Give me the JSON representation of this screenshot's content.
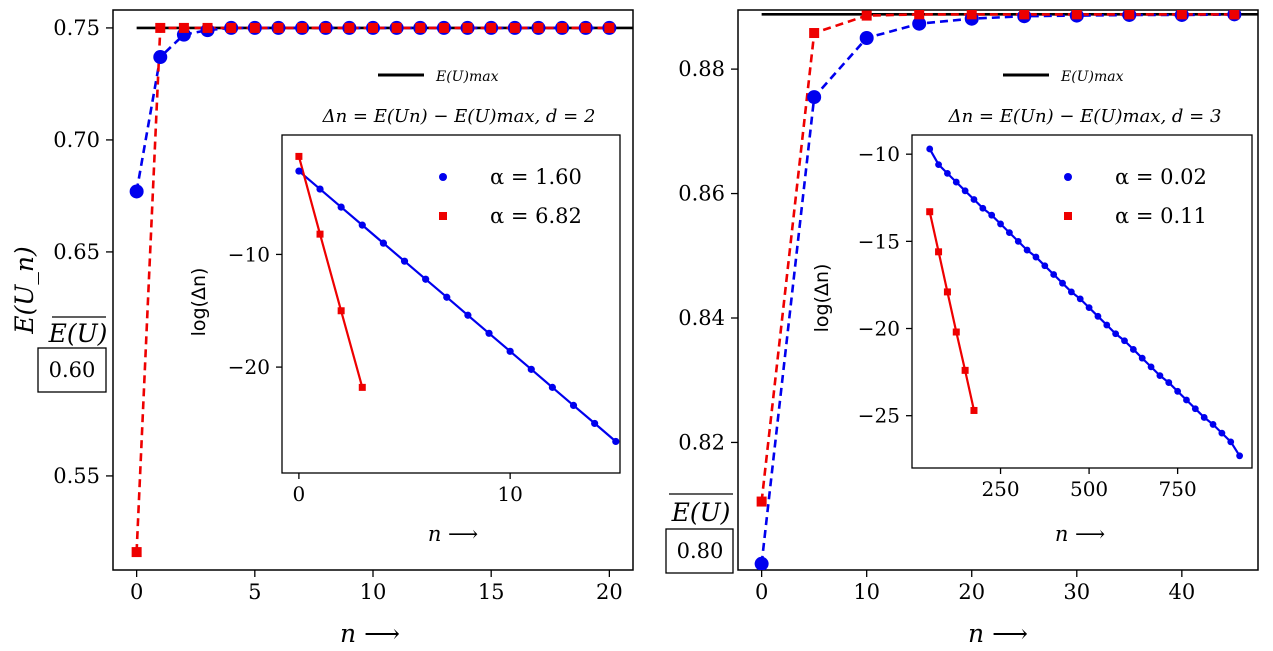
{
  "chart_data": [
    {
      "type": "line",
      "ylabel": "E(U_n)",
      "ylabel_box_overline": "E(U)",
      "ylabel_box_value": "0.60",
      "xlabel": "n ⟶",
      "xlim": [
        -1,
        21
      ],
      "ylim": [
        0.508,
        0.758
      ],
      "xticks": [
        0,
        5,
        10,
        15,
        20
      ],
      "xtick_labels": [
        "0",
        "5",
        "10",
        "15",
        "20"
      ],
      "yticks": [
        0.55,
        0.65,
        0.7,
        0.75
      ],
      "ytick_labels": [
        "0.55",
        "0.65",
        "0.70",
        "0.75"
      ],
      "max_line": {
        "value": 0.75,
        "label": "E(U)max"
      },
      "series": [
        {
          "name": "blue",
          "color": "#0000ee",
          "marker": "circle",
          "x": [
            0,
            1,
            2,
            3,
            4,
            5,
            6,
            7,
            8,
            9,
            10,
            11,
            12,
            13,
            14,
            15,
            16,
            17,
            18,
            19,
            20
          ],
          "values": [
            0.677,
            0.737,
            0.747,
            0.749,
            0.75,
            0.75,
            0.75,
            0.75,
            0.75,
            0.75,
            0.75,
            0.75,
            0.75,
            0.75,
            0.75,
            0.75,
            0.75,
            0.75,
            0.75,
            0.75,
            0.75
          ]
        },
        {
          "name": "red",
          "color": "#ee0000",
          "marker": "square",
          "x": [
            0,
            1,
            2,
            3,
            4,
            5,
            6,
            7,
            8,
            9,
            10,
            11,
            12,
            13,
            14,
            15,
            16,
            17,
            18,
            19,
            20
          ],
          "values": [
            0.516,
            0.75,
            0.75,
            0.75,
            0.75,
            0.75,
            0.75,
            0.75,
            0.75,
            0.75,
            0.75,
            0.75,
            0.75,
            0.75,
            0.75,
            0.75,
            0.75,
            0.75,
            0.75,
            0.75,
            0.75
          ]
        }
      ],
      "inset": {
        "title": "Δn = E(Un) − E(U)max, d = 2",
        "ylabel": "log(Δn)",
        "xlabel": "n ⟶",
        "xlim": [
          -0.8,
          15.2
        ],
        "ylim": [
          -29.4,
          0.6
        ],
        "xticks": [
          0,
          10
        ],
        "xtick_labels": [
          "0",
          "10"
        ],
        "yticks": [
          -10,
          -20
        ],
        "ytick_labels": [
          "−10",
          "−20"
        ],
        "legend": [
          "α = 1.60",
          "α = 6.82"
        ],
        "series": [
          {
            "name": "α = 1.60",
            "color": "#0000ee",
            "marker": "circle",
            "x": [
              0,
              1,
              2,
              3,
              4,
              5,
              6,
              7,
              8,
              9,
              10,
              11,
              12,
              13,
              14,
              15
            ],
            "values": [
              -2.6,
              -4.2,
              -5.8,
              -7.4,
              -9.0,
              -10.6,
              -12.2,
              -13.8,
              -15.4,
              -17.0,
              -18.6,
              -20.2,
              -21.8,
              -23.4,
              -25.0,
              -26.6
            ]
          },
          {
            "name": "α = 6.82",
            "color": "#ee0000",
            "marker": "square",
            "x": [
              0,
              1,
              2,
              3
            ],
            "values": [
              -1.3,
              -8.2,
              -15.0,
              -21.8
            ]
          }
        ]
      }
    },
    {
      "type": "line",
      "ylabel_box_overline": "E(U)",
      "ylabel_box_value": "0.80",
      "xlabel": "n ⟶",
      "xlim": [
        -2.25,
        47.25
      ],
      "ylim": [
        0.7995,
        0.8895
      ],
      "xticks": [
        0,
        10,
        20,
        30,
        40
      ],
      "xtick_labels": [
        "0",
        "10",
        "20",
        "30",
        "40"
      ],
      "yticks": [
        0.82,
        0.84,
        0.86,
        0.88
      ],
      "ytick_labels": [
        "0.82",
        "0.84",
        "0.86",
        "0.88"
      ],
      "max_line": {
        "value": 0.8888,
        "label": "E(U)max"
      },
      "series": [
        {
          "name": "blue",
          "color": "#0000ee",
          "marker": "circle",
          "x": [
            0,
            5,
            10,
            15,
            20,
            25,
            30,
            35,
            40,
            45
          ],
          "values": [
            0.8005,
            0.8755,
            0.885,
            0.8873,
            0.8881,
            0.8885,
            0.8886,
            0.8887,
            0.8887,
            0.8888
          ]
        },
        {
          "name": "red",
          "color": "#ee0000",
          "marker": "square",
          "x": [
            0,
            5,
            10,
            15,
            20,
            25,
            30,
            35,
            40,
            45
          ],
          "values": [
            0.8105,
            0.8858,
            0.8886,
            0.8888,
            0.8888,
            0.8888,
            0.8888,
            0.8888,
            0.8888,
            0.8888
          ]
        }
      ],
      "inset": {
        "title": "Δn = E(Un) − E(U)max, d = 3",
        "ylabel": "log(Δn)",
        "xlabel": "n ⟶",
        "xlim": [
          0,
          960
        ],
        "ylim": [
          -28.0,
          -8.9
        ],
        "xticks": [
          250,
          500,
          750
        ],
        "xtick_labels": [
          "250",
          "500",
          "750"
        ],
        "yticks": [
          -10,
          -15,
          -20,
          -25
        ],
        "ytick_labels": [
          "−10",
          "−15",
          "−20",
          "−25"
        ],
        "legend": [
          "α = 0.02",
          "α = 0.11"
        ],
        "series": [
          {
            "name": "α = 0.02",
            "color": "#0000ee",
            "marker": "circle",
            "x": [
              50,
              75,
              100,
              125,
              150,
              175,
              200,
              225,
              250,
              275,
              300,
              325,
              350,
              375,
              400,
              425,
              450,
              475,
              500,
              525,
              550,
              575,
              600,
              625,
              650,
              675,
              700,
              725,
              750,
              775,
              800,
              825,
              850,
              875,
              900,
              925
            ],
            "values": [
              -9.7,
              -10.6,
              -11.1,
              -11.6,
              -12.1,
              -12.6,
              -13.1,
              -13.5,
              -14.0,
              -14.5,
              -15.0,
              -15.5,
              -15.9,
              -16.4,
              -16.9,
              -17.4,
              -17.9,
              -18.3,
              -18.8,
              -19.3,
              -19.8,
              -20.3,
              -20.7,
              -21.2,
              -21.7,
              -22.2,
              -22.7,
              -23.1,
              -23.6,
              -24.1,
              -24.6,
              -25.1,
              -25.5,
              -26.0,
              -26.5,
              -27.3
            ]
          },
          {
            "name": "α = 0.11",
            "color": "#ee0000",
            "marker": "square",
            "x": [
              50,
              75,
              100,
              125,
              150,
              175
            ],
            "values": [
              -13.3,
              -15.6,
              -17.9,
              -20.2,
              -22.4,
              -24.7
            ]
          }
        ]
      }
    }
  ]
}
